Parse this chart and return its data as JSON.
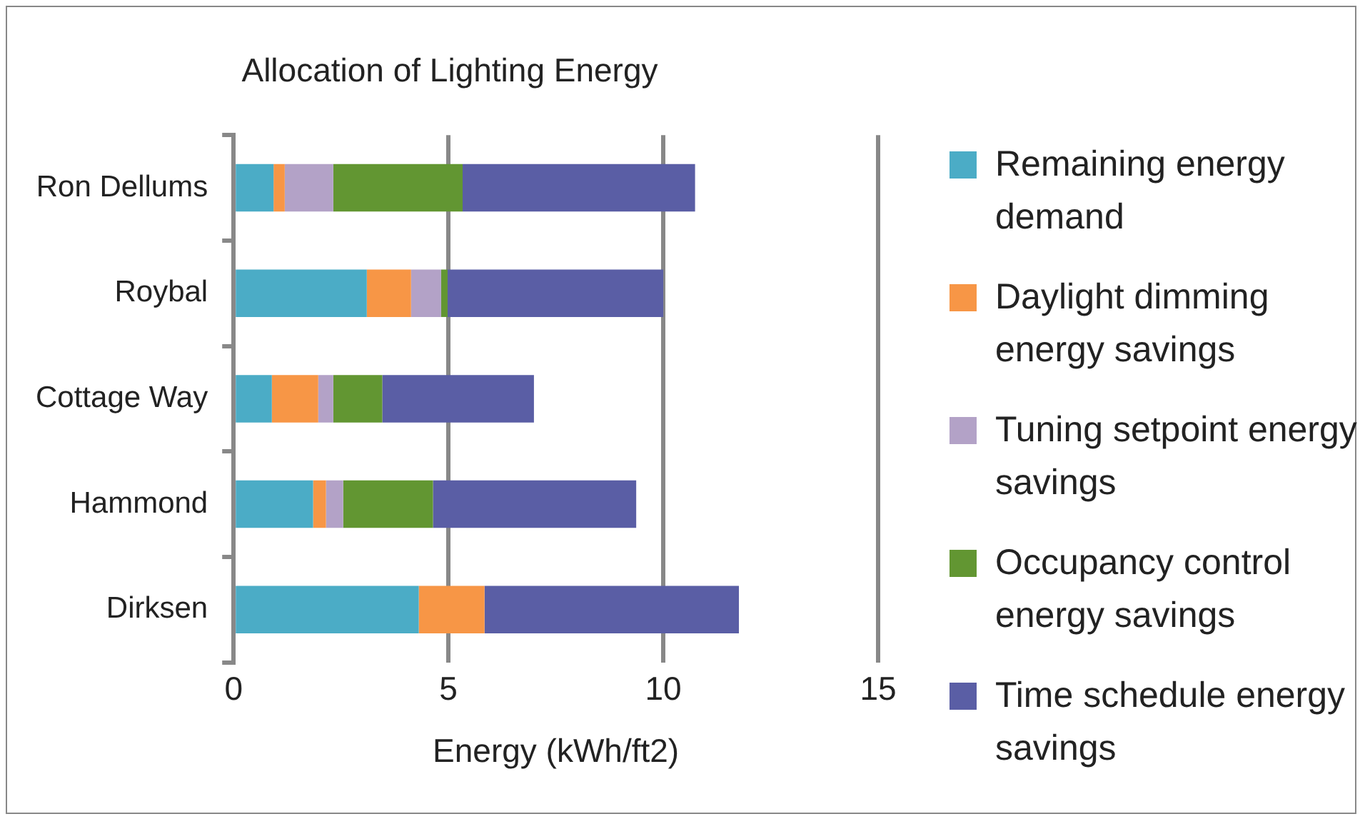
{
  "chart_data": {
    "type": "bar",
    "orientation": "horizontal",
    "stacked": true,
    "title": "Allocation of Lighting Energy",
    "xlabel": "Energy (kWh/ft2)",
    "categories": [
      "Ron Dellums",
      "Roybal",
      "Cottage Way",
      "Hammond",
      "Dirksen"
    ],
    "series": [
      {
        "name": "Remaining energy demand",
        "color": "#4bacc6",
        "values": [
          0.93,
          3.1,
          0.89,
          1.85,
          4.31
        ]
      },
      {
        "name": "Daylight dimming energy savings",
        "color": "#f79646",
        "values": [
          0.26,
          1.03,
          1.08,
          0.3,
          1.53
        ]
      },
      {
        "name": "Tuning setpoint energy savings",
        "color": "#b3a2c7",
        "values": [
          1.13,
          0.7,
          0.35,
          0.4,
          0
        ]
      },
      {
        "name": "Occupancy control energy savings",
        "color": "#629632",
        "values": [
          3.01,
          0.15,
          1.14,
          2.09,
          0
        ]
      },
      {
        "name": "Time schedule energy savings",
        "color": "#5a5ea5",
        "values": [
          5.41,
          5.02,
          3.53,
          4.73,
          5.92
        ]
      }
    ],
    "xlim": [
      0,
      15
    ],
    "xticks": [
      0,
      5,
      10,
      15
    ],
    "grid": "x",
    "legend": "right"
  }
}
